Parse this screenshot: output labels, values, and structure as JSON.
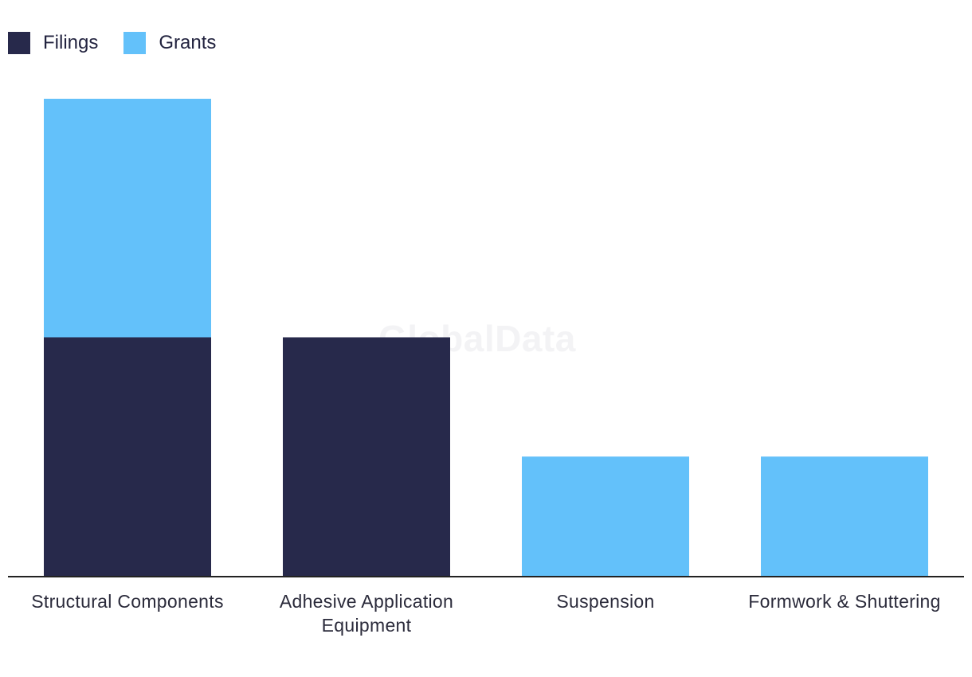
{
  "watermark": "GlobalData",
  "chart_data": {
    "type": "bar",
    "stacked": true,
    "categories": [
      "Structural Components",
      "Adhesive Application Equipment",
      "Suspension",
      "Formwork & Shuttering"
    ],
    "category_lines": [
      [
        "Structural Components"
      ],
      [
        "Adhesive Application",
        "Equipment"
      ],
      [
        "Suspension"
      ],
      [
        "Formwork & Shuttering"
      ]
    ],
    "series": [
      {
        "name": "Filings",
        "color": "#27294b",
        "values": [
          2,
          2,
          0,
          0
        ]
      },
      {
        "name": "Grants",
        "color": "#63c1fa",
        "values": [
          2,
          0,
          1,
          1
        ]
      }
    ],
    "ylim": [
      0,
      4
    ],
    "grid": false,
    "legend_position": "top-left"
  }
}
